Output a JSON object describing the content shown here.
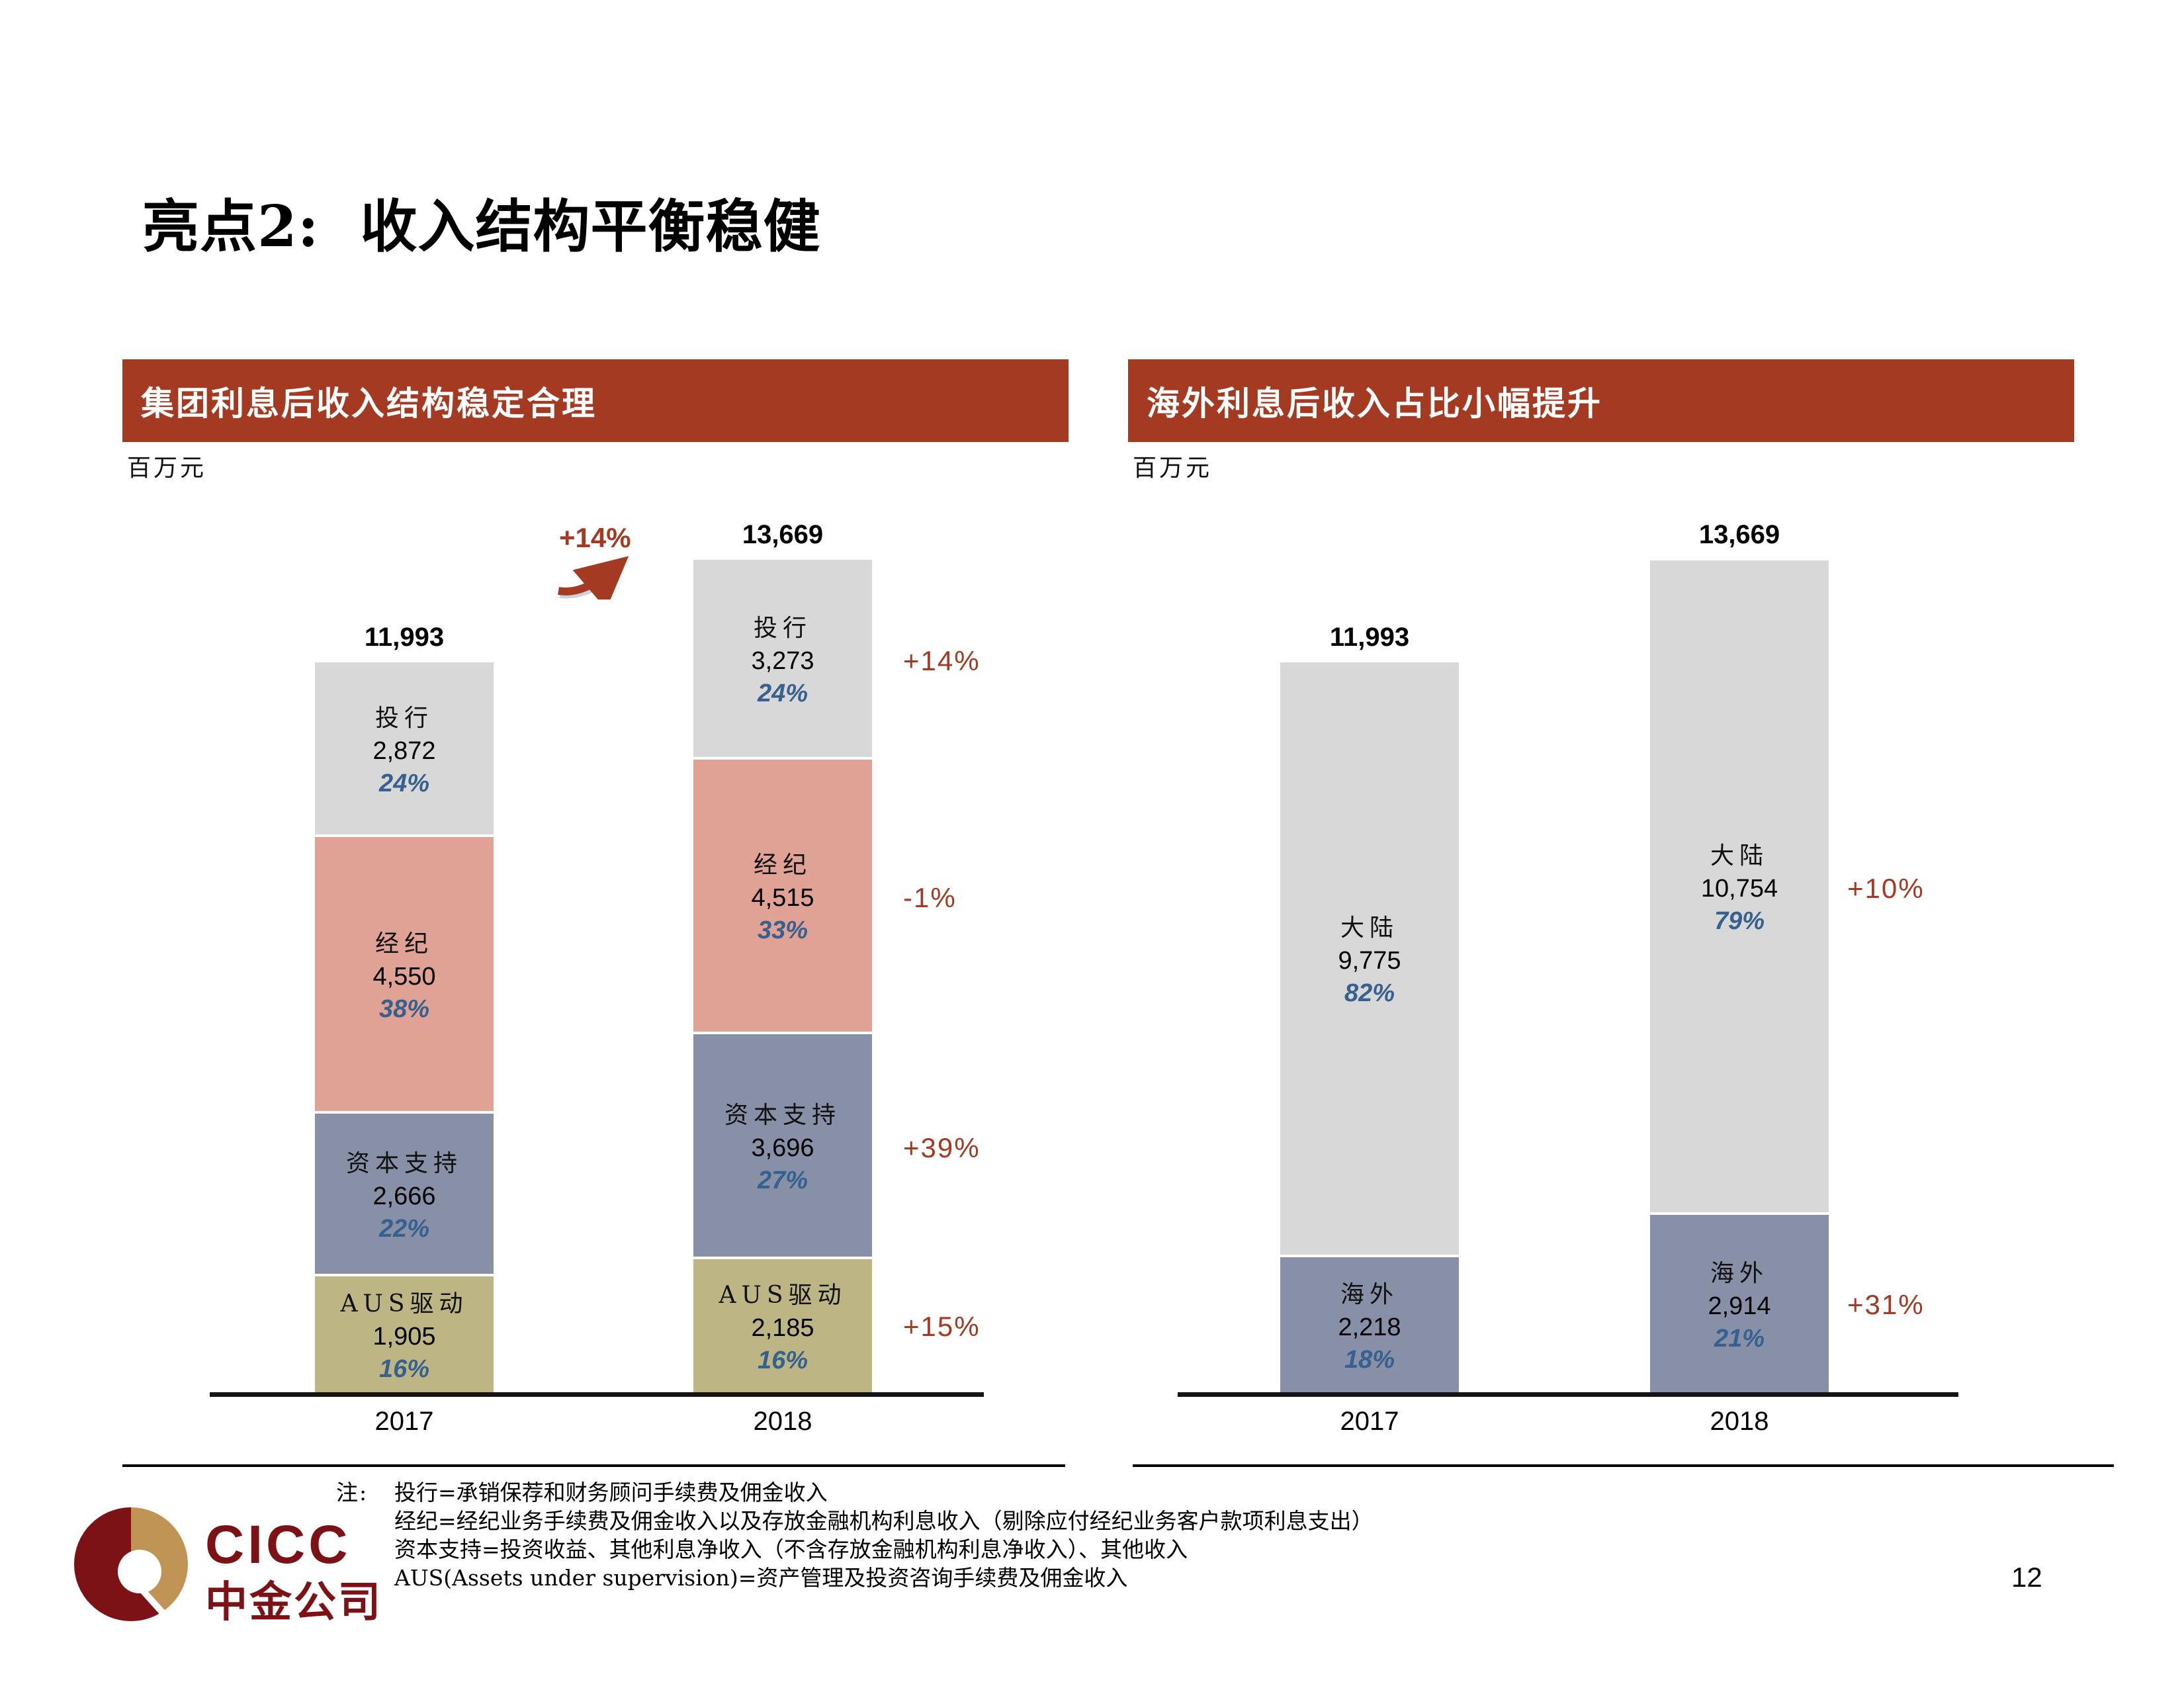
{
  "page": {
    "title": "亮点2:  收入结构平衡稳健",
    "page_number": "12"
  },
  "colors": {
    "header_red": "#A43A21",
    "yoy_red": "#A43A21",
    "pct_blue": "#36608E",
    "segment_gray": "#D8D8D8",
    "segment_salmon": "#DFA294",
    "segment_grayblue": "#8790A7",
    "segment_khaki": "#BEB584",
    "logo_maroon": "#7D1216",
    "logo_gold": "#C09455"
  },
  "chart_data": [
    {
      "type": "bar",
      "stacked": true,
      "title": "集团利息后收入结构稳定合理",
      "unit_label": "百万元",
      "categories": [
        "2017",
        "2018"
      ],
      "totals": [
        11993,
        13669
      ],
      "totals_display": [
        "11,993",
        "13,669"
      ],
      "total_growth": "+14%",
      "grid": false,
      "legend_position": "none",
      "series": [
        {
          "name": "AUS驱动",
          "values": [
            1905,
            2185
          ],
          "values_display": [
            "1,905",
            "2,185"
          ],
          "pcts": [
            "16%",
            "16%"
          ],
          "color": "#BEB584",
          "yoy": "+15%"
        },
        {
          "name": "资本支持",
          "values": [
            2666,
            3696
          ],
          "values_display": [
            "2,666",
            "3,696"
          ],
          "pcts": [
            "22%",
            "27%"
          ],
          "color": "#8790A7",
          "yoy": "+39%"
        },
        {
          "name": "经纪",
          "values": [
            4550,
            4515
          ],
          "values_display": [
            "4,550",
            "4,515"
          ],
          "pcts": [
            "38%",
            "33%"
          ],
          "color": "#DFA294",
          "yoy": "-1%"
        },
        {
          "name": "投行",
          "values": [
            2872,
            3273
          ],
          "values_display": [
            "2,872",
            "3,273"
          ],
          "pcts": [
            "24%",
            "24%"
          ],
          "color": "#D8D8D8",
          "yoy": "+14%"
        }
      ]
    },
    {
      "type": "bar",
      "stacked": true,
      "title": "海外利息后收入占比小幅提升",
      "unit_label": "百万元",
      "categories": [
        "2017",
        "2018"
      ],
      "totals": [
        11993,
        13669
      ],
      "totals_display": [
        "11,993",
        "13,669"
      ],
      "grid": false,
      "legend_position": "none",
      "series": [
        {
          "name": "海外",
          "values": [
            2218,
            2914
          ],
          "values_display": [
            "2,218",
            "2,914"
          ],
          "pcts": [
            "18%",
            "21%"
          ],
          "color": "#8790A7",
          "yoy": "+31%"
        },
        {
          "name": "大陆",
          "values": [
            9775,
            10754
          ],
          "values_display": [
            "9,775",
            "10,754"
          ],
          "pcts": [
            "82%",
            "79%"
          ],
          "color": "#D8D8D8",
          "yoy": "+10%"
        }
      ]
    }
  ],
  "notes": {
    "prefix": "注:",
    "lines": [
      "投行=承销保荐和财务顾问手续费及佣金收入",
      "经纪=经纪业务手续费及佣金收入以及存放金融机构利息收入（剔除应付经纪业务客户款项利息支出）",
      "资本支持=投资收益、其他利息净收入（不含存放金融机构利息净收入）、其他收入",
      "AUS(Assets under supervision)=资产管理及投资咨询手续费及佣金收入"
    ]
  },
  "logo": {
    "en": "CICC",
    "cn": "中金公司"
  }
}
